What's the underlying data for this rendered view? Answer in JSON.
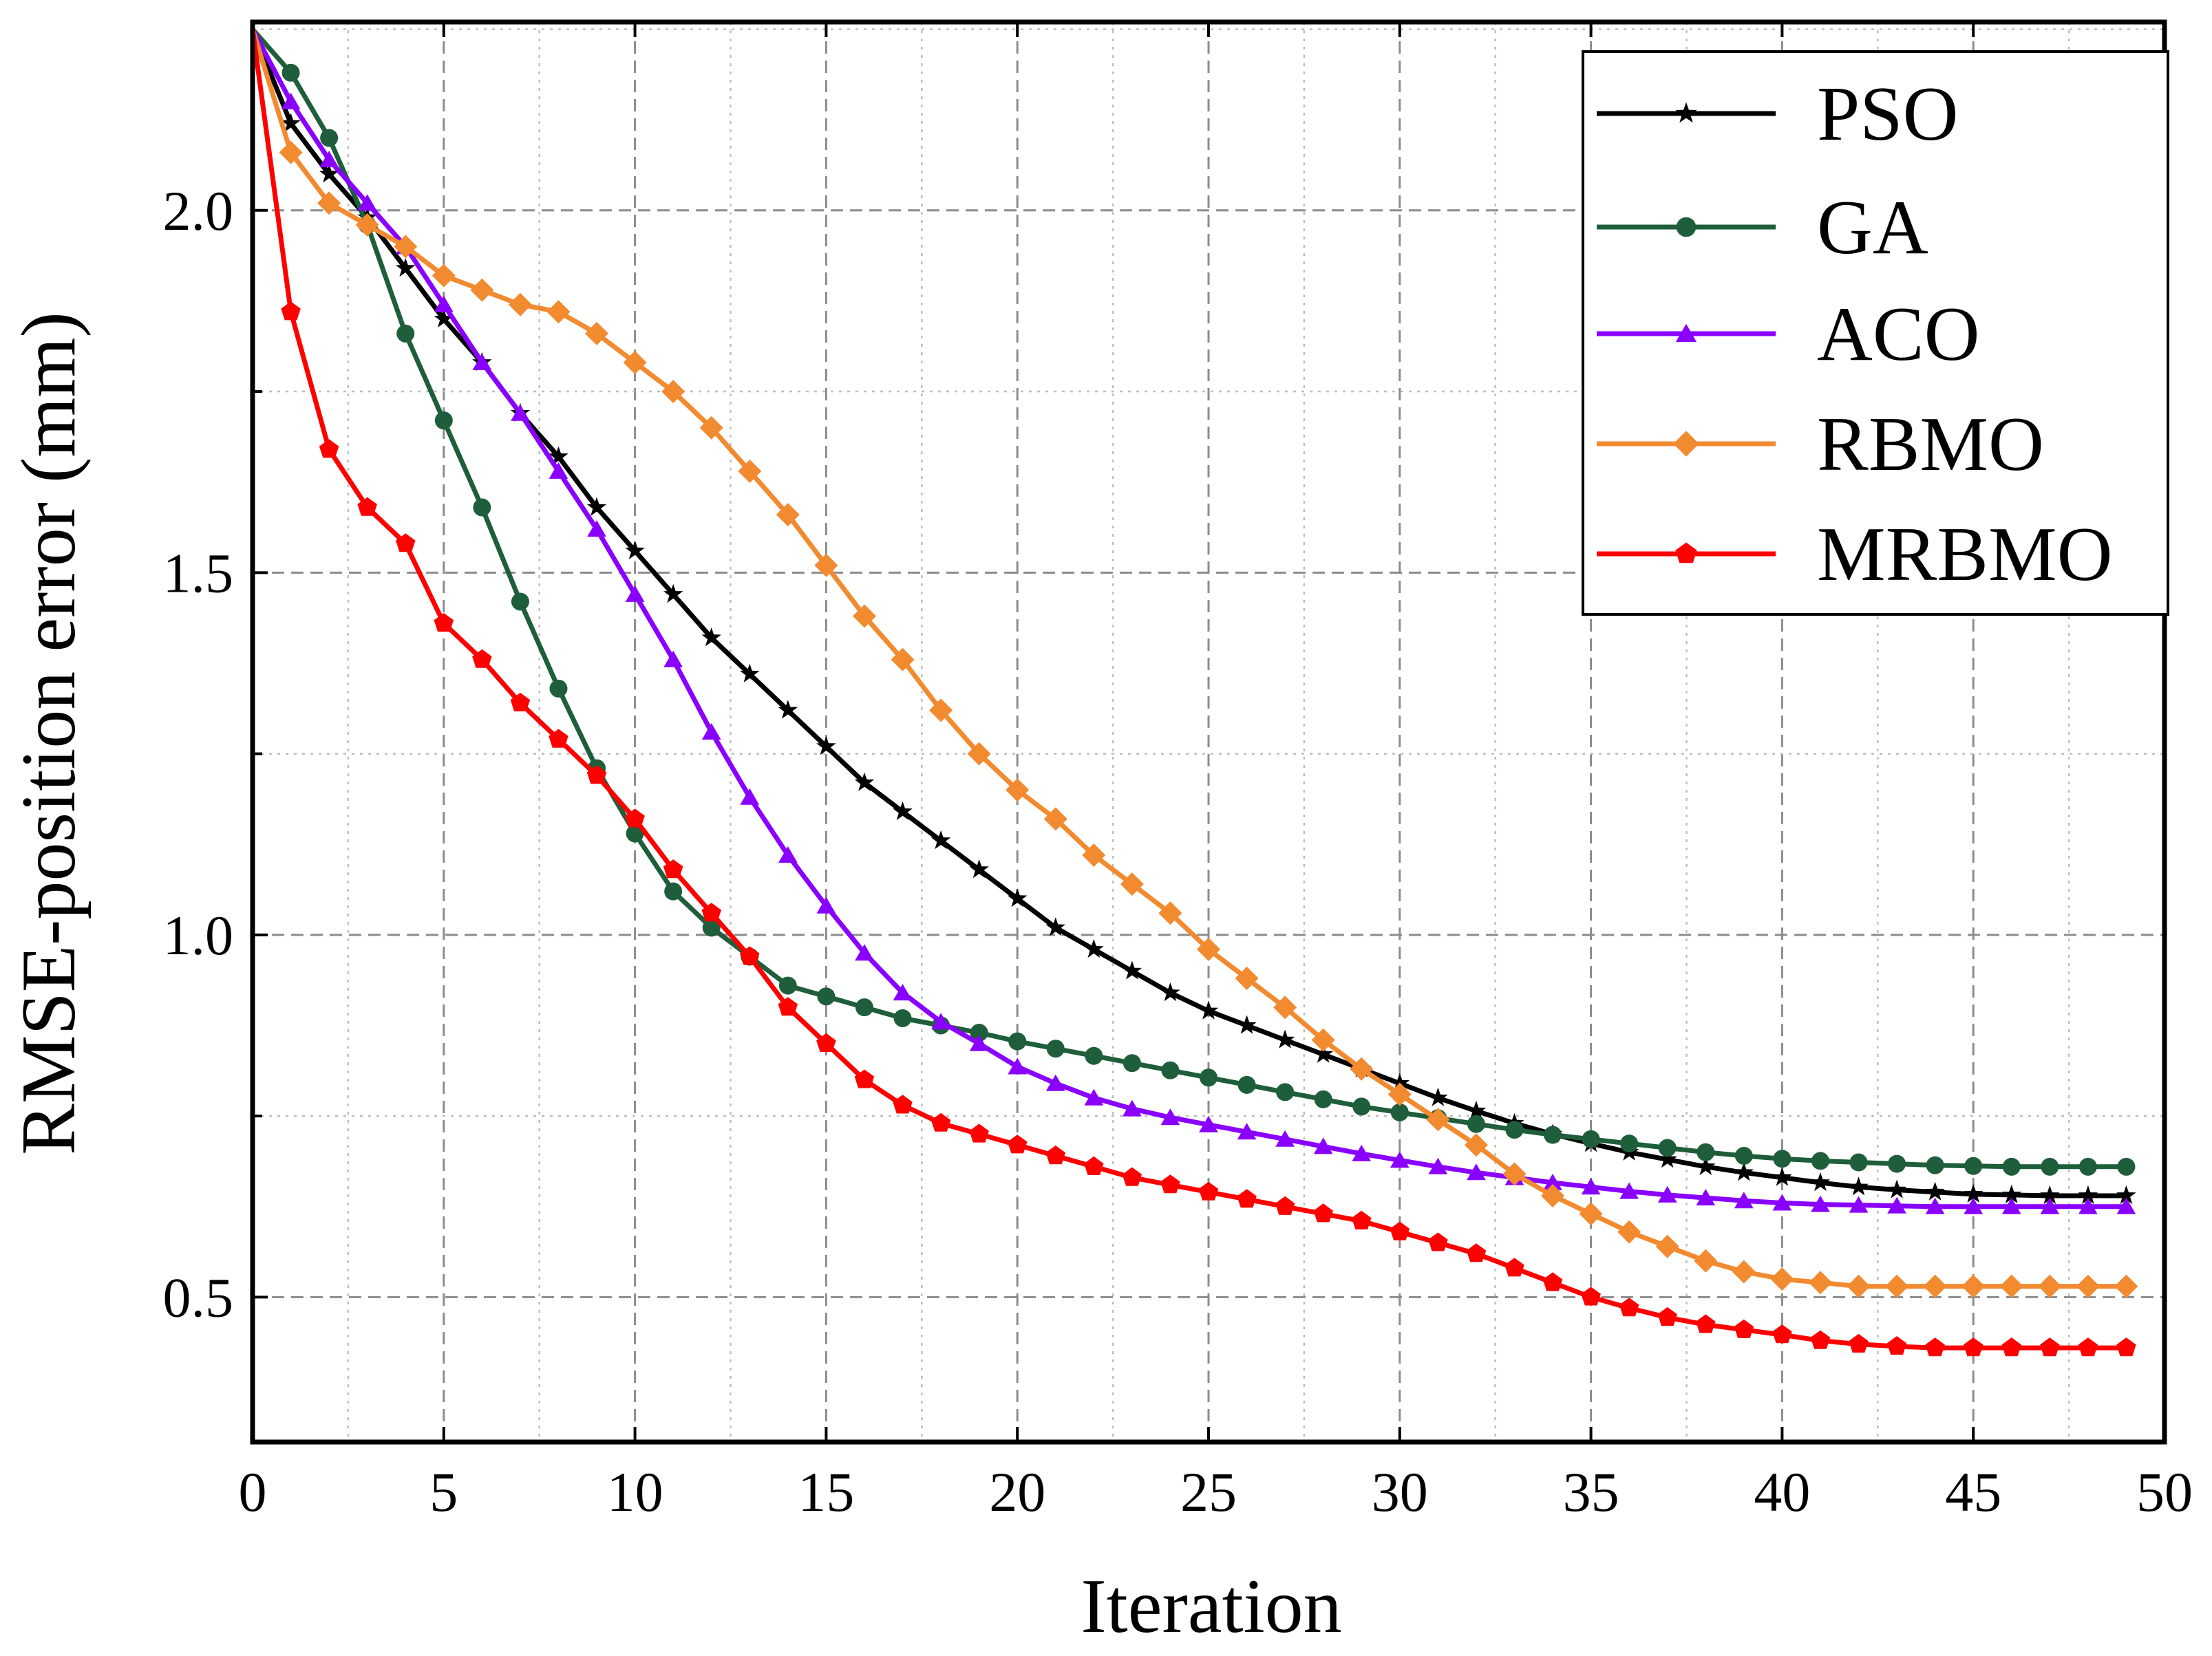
{
  "chart_data": {
    "type": "line",
    "title": "",
    "xlabel": "Iteration",
    "ylabel": "RMSE-position error (mm)",
    "xlim": [
      0,
      50
    ],
    "ylim": [
      0.3,
      2.26
    ],
    "xticks": [
      "0",
      "5",
      "10",
      "15",
      "20",
      "25",
      "30",
      "35",
      "40",
      "45",
      "50"
    ],
    "yticks": [
      {
        "value": 0.5,
        "label": "0.5"
      },
      {
        "value": 1.0,
        "label": "1.0"
      },
      {
        "value": 1.5,
        "label": "1.5"
      },
      {
        "value": 2.0,
        "label": "2.0"
      }
    ],
    "grid": true,
    "legend_position": "top-right",
    "x": [
      0,
      1,
      2,
      3,
      4,
      5,
      6,
      7,
      8,
      9,
      10,
      11,
      12,
      13,
      14,
      15,
      16,
      17,
      18,
      19,
      20,
      21,
      22,
      23,
      24,
      25,
      26,
      27,
      28,
      29,
      30,
      31,
      32,
      33,
      34,
      35,
      36,
      37,
      38,
      39,
      40,
      41,
      42,
      43,
      44,
      45,
      46,
      47,
      48,
      49
    ],
    "series": [
      {
        "name": "PSO",
        "color": "#000000",
        "marker": "star",
        "values": [
          2.25,
          2.12,
          2.05,
          1.99,
          1.92,
          1.85,
          1.79,
          1.72,
          1.66,
          1.59,
          1.53,
          1.47,
          1.41,
          1.36,
          1.31,
          1.26,
          1.21,
          1.17,
          1.13,
          1.09,
          1.05,
          1.01,
          0.98,
          0.95,
          0.92,
          0.895,
          0.875,
          0.855,
          0.835,
          0.815,
          0.795,
          0.775,
          0.757,
          0.74,
          0.725,
          0.712,
          0.7,
          0.69,
          0.68,
          0.672,
          0.665,
          0.658,
          0.652,
          0.648,
          0.645,
          0.642,
          0.641,
          0.64,
          0.64,
          0.64
        ]
      },
      {
        "name": "GA",
        "color": "#1e5e3a",
        "marker": "circle",
        "values": [
          2.25,
          2.19,
          2.1,
          1.98,
          1.83,
          1.71,
          1.59,
          1.46,
          1.34,
          1.23,
          1.14,
          1.06,
          1.01,
          0.97,
          0.93,
          0.915,
          0.9,
          0.885,
          0.875,
          0.865,
          0.853,
          0.843,
          0.833,
          0.823,
          0.813,
          0.803,
          0.793,
          0.783,
          0.773,
          0.763,
          0.755,
          0.747,
          0.739,
          0.731,
          0.724,
          0.718,
          0.712,
          0.706,
          0.7,
          0.695,
          0.691,
          0.688,
          0.686,
          0.684,
          0.682,
          0.681,
          0.68,
          0.68,
          0.68,
          0.68
        ]
      },
      {
        "name": "ACO",
        "color": "#8a00ff",
        "marker": "triangle",
        "values": [
          2.25,
          2.15,
          2.07,
          2.01,
          1.95,
          1.87,
          1.79,
          1.72,
          1.64,
          1.56,
          1.47,
          1.38,
          1.28,
          1.19,
          1.11,
          1.04,
          0.975,
          0.92,
          0.88,
          0.85,
          0.818,
          0.795,
          0.775,
          0.76,
          0.748,
          0.738,
          0.728,
          0.718,
          0.708,
          0.698,
          0.689,
          0.68,
          0.672,
          0.665,
          0.658,
          0.652,
          0.646,
          0.641,
          0.637,
          0.633,
          0.63,
          0.628,
          0.627,
          0.626,
          0.625,
          0.625,
          0.625,
          0.625,
          0.625,
          0.625
        ]
      },
      {
        "name": "RBMO",
        "color": "#f28a30",
        "marker": "diamond",
        "values": [
          2.25,
          2.08,
          2.01,
          1.98,
          1.95,
          1.91,
          1.89,
          1.87,
          1.86,
          1.83,
          1.79,
          1.75,
          1.7,
          1.64,
          1.58,
          1.51,
          1.44,
          1.38,
          1.31,
          1.25,
          1.2,
          1.16,
          1.11,
          1.07,
          1.03,
          0.98,
          0.94,
          0.9,
          0.855,
          0.815,
          0.78,
          0.745,
          0.71,
          0.67,
          0.64,
          0.615,
          0.59,
          0.57,
          0.55,
          0.535,
          0.525,
          0.52,
          0.515,
          0.515,
          0.515,
          0.515,
          0.515,
          0.515,
          0.515,
          0.515
        ]
      },
      {
        "name": "MRBMO",
        "color": "#ff0000",
        "marker": "pentagon",
        "values": [
          2.25,
          1.86,
          1.67,
          1.59,
          1.54,
          1.43,
          1.38,
          1.32,
          1.27,
          1.22,
          1.16,
          1.09,
          1.03,
          0.97,
          0.9,
          0.85,
          0.8,
          0.765,
          0.74,
          0.725,
          0.71,
          0.695,
          0.68,
          0.665,
          0.655,
          0.645,
          0.635,
          0.625,
          0.615,
          0.605,
          0.59,
          0.575,
          0.56,
          0.54,
          0.52,
          0.5,
          0.485,
          0.472,
          0.462,
          0.455,
          0.448,
          0.44,
          0.435,
          0.432,
          0.43,
          0.43,
          0.43,
          0.43,
          0.43,
          0.43
        ]
      }
    ]
  }
}
